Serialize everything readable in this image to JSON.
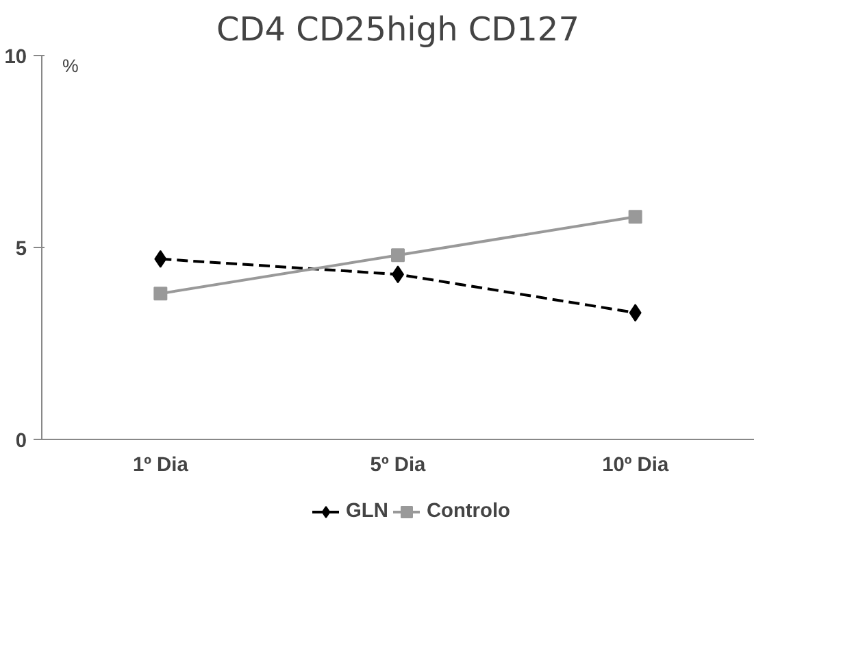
{
  "chart_data": {
    "type": "line",
    "title": "CD4 CD25high CD127",
    "ylabel": "%",
    "categories": [
      "1º Dia",
      "5º Dia",
      "10º Dia"
    ],
    "series": [
      {
        "name": "GLN",
        "color": "#000000",
        "values": [
          4.7,
          4.3,
          3.3
        ],
        "marker": "diamond",
        "line_style": "dashed"
      },
      {
        "name": "Controlo",
        "color": "#999999",
        "values": [
          3.8,
          4.8,
          5.8
        ],
        "marker": "square",
        "line_style": "solid"
      }
    ],
    "ylim": [
      0,
      10
    ],
    "yticks": [
      0,
      5,
      10
    ],
    "grid": false,
    "legend": "bottom"
  }
}
